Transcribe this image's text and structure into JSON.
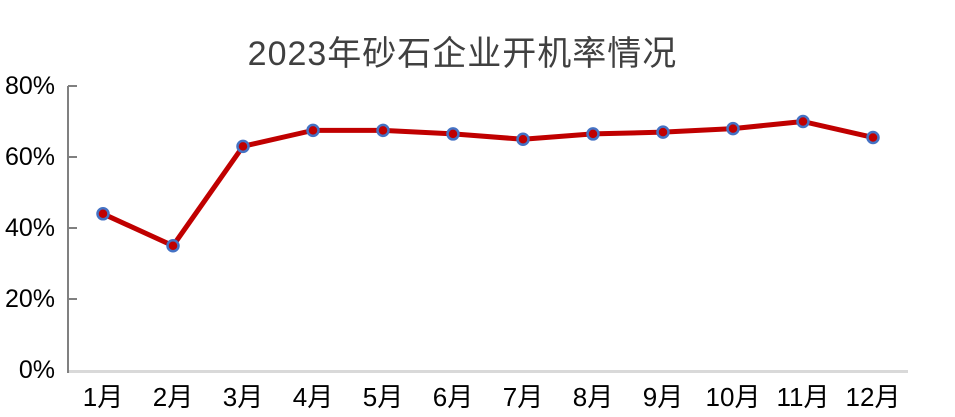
{
  "title": "2023年砂石企业开机率情况",
  "chart_data": {
    "type": "line",
    "title": "2023年砂石企业开机率情况",
    "categories": [
      "1月",
      "2月",
      "3月",
      "4月",
      "5月",
      "6月",
      "7月",
      "8月",
      "9月",
      "10月",
      "11月",
      "12月"
    ],
    "values": [
      44,
      35,
      63,
      67.5,
      67.5,
      66.5,
      65,
      66.5,
      67,
      68,
      70,
      65.5
    ],
    "xlabel": "",
    "ylabel": "",
    "ylim": [
      0,
      80
    ],
    "y_tick_labels": [
      "0%",
      "20%",
      "40%",
      "60%",
      "80%"
    ],
    "grid": false,
    "legend": "none",
    "colors": {
      "line": "#c00000",
      "marker_fill": "#c00000",
      "marker_border": "#4472c4",
      "axis_line": "#808080",
      "baseline": "#d9d9d9",
      "title_text": "#404040",
      "tick_text": "#000000"
    }
  }
}
